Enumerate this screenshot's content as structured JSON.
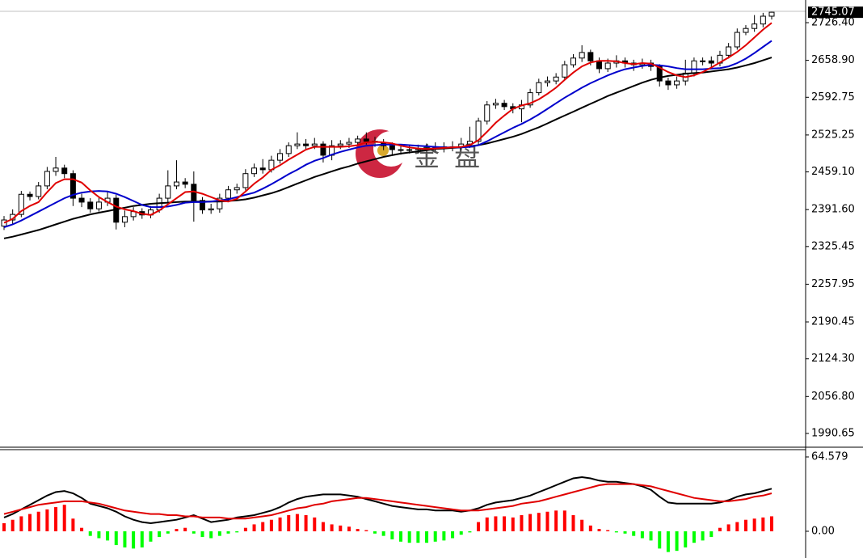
{
  "watermark": "金 盘",
  "chart_data": [
    {
      "type": "candlestick",
      "open": [
        2362,
        2373,
        2383,
        2419,
        2415,
        2434,
        2460,
        2466,
        2456,
        2412,
        2405,
        2393,
        2405,
        2412,
        2369,
        2379,
        2388,
        2382,
        2391,
        2412,
        2434,
        2441,
        2437,
        2408,
        2391,
        2393,
        2412,
        2427,
        2431,
        2456,
        2466,
        2463,
        2480,
        2492,
        2506,
        2509,
        2506,
        2509,
        2489,
        2506,
        2509,
        2512,
        2518,
        2514,
        2512,
        2506,
        2499,
        2498,
        2499,
        2501,
        2502,
        2504,
        2502,
        2504,
        2509,
        2514,
        2550,
        2579,
        2582,
        2576,
        2572,
        2579,
        2601,
        2619,
        2622,
        2629,
        2651,
        2663,
        2673,
        2658,
        2644,
        2654,
        2658,
        2654,
        2651,
        2654,
        2648,
        2622,
        2615,
        2622,
        2636,
        2658,
        2658,
        2654,
        2668,
        2683,
        2709,
        2716,
        2724,
        2738
      ],
      "high": [
        2380,
        2392,
        2425,
        2424,
        2441,
        2468,
        2486,
        2472,
        2462,
        2420,
        2412,
        2414,
        2424,
        2418,
        2390,
        2396,
        2394,
        2398,
        2420,
        2462,
        2480,
        2448,
        2460,
        2414,
        2402,
        2420,
        2434,
        2438,
        2464,
        2474,
        2482,
        2488,
        2500,
        2512,
        2530,
        2518,
        2520,
        2514,
        2516,
        2516,
        2520,
        2524,
        2530,
        2522,
        2518,
        2512,
        2506,
        2506,
        2508,
        2510,
        2512,
        2512,
        2514,
        2520,
        2540,
        2556,
        2586,
        2590,
        2588,
        2582,
        2588,
        2608,
        2626,
        2630,
        2636,
        2658,
        2670,
        2686,
        2678,
        2664,
        2662,
        2668,
        2664,
        2660,
        2662,
        2660,
        2652,
        2628,
        2630,
        2660,
        2664,
        2664,
        2666,
        2676,
        2690,
        2716,
        2722,
        2740,
        2744,
        2746
      ],
      "low": [
        2355,
        2366,
        2378,
        2408,
        2410,
        2428,
        2452,
        2448,
        2398,
        2396,
        2386,
        2388,
        2398,
        2356,
        2360,
        2372,
        2375,
        2376,
        2386,
        2405,
        2428,
        2430,
        2370,
        2384,
        2384,
        2386,
        2406,
        2420,
        2426,
        2450,
        2456,
        2458,
        2474,
        2486,
        2500,
        2498,
        2500,
        2476,
        2480,
        2500,
        2502,
        2506,
        2508,
        2504,
        2498,
        2490,
        2490,
        2492,
        2492,
        2494,
        2496,
        2494,
        2496,
        2498,
        2502,
        2508,
        2544,
        2572,
        2570,
        2564,
        2548,
        2574,
        2596,
        2612,
        2616,
        2624,
        2646,
        2656,
        2650,
        2636,
        2638,
        2646,
        2646,
        2640,
        2644,
        2640,
        2612,
        2606,
        2608,
        2614,
        2630,
        2650,
        2646,
        2648,
        2662,
        2678,
        2704,
        2710,
        2718,
        2732
      ],
      "close": [
        2373,
        2383,
        2419,
        2415,
        2434,
        2460,
        2466,
        2456,
        2412,
        2405,
        2393,
        2405,
        2412,
        2369,
        2379,
        2388,
        2382,
        2391,
        2412,
        2434,
        2441,
        2437,
        2408,
        2391,
        2393,
        2412,
        2427,
        2431,
        2456,
        2466,
        2463,
        2480,
        2492,
        2506,
        2509,
        2506,
        2509,
        2489,
        2506,
        2509,
        2512,
        2518,
        2514,
        2512,
        2506,
        2499,
        2498,
        2499,
        2501,
        2502,
        2504,
        2502,
        2504,
        2509,
        2514,
        2550,
        2579,
        2582,
        2576,
        2572,
        2579,
        2601,
        2619,
        2622,
        2629,
        2651,
        2663,
        2673,
        2658,
        2644,
        2654,
        2658,
        2654,
        2651,
        2654,
        2648,
        2622,
        2615,
        2622,
        2636,
        2658,
        2658,
        2654,
        2668,
        2683,
        2709,
        2716,
        2724,
        2738,
        2745.07
      ],
      "moving_averages": [
        {
          "color": "#000000",
          "values": [
            2340,
            2343,
            2347,
            2351,
            2355,
            2360,
            2365,
            2370,
            2375,
            2379,
            2383,
            2386,
            2389,
            2392,
            2395,
            2398,
            2400,
            2402,
            2403,
            2404,
            2405,
            2406,
            2406,
            2406,
            2406,
            2406,
            2407,
            2408,
            2410,
            2413,
            2417,
            2421,
            2426,
            2432,
            2438,
            2444,
            2450,
            2455,
            2460,
            2465,
            2469,
            2474,
            2478,
            2482,
            2486,
            2489,
            2492,
            2494,
            2496,
            2498,
            2500,
            2501,
            2502,
            2503,
            2505,
            2507,
            2510,
            2514,
            2518,
            2522,
            2527,
            2533,
            2539,
            2546,
            2553,
            2560,
            2567,
            2574,
            2581,
            2588,
            2595,
            2601,
            2607,
            2613,
            2619,
            2624,
            2628,
            2631,
            2633,
            2635,
            2636,
            2637,
            2639,
            2641,
            2643,
            2646,
            2650,
            2654,
            2659,
            2664
          ]
        },
        {
          "color": "#0000cc",
          "values": [
            2360,
            2365,
            2372,
            2380,
            2388,
            2396,
            2404,
            2412,
            2418,
            2422,
            2424,
            2425,
            2424,
            2420,
            2414,
            2407,
            2400,
            2396,
            2396,
            2397,
            2400,
            2404,
            2405,
            2405,
            2406,
            2408,
            2410,
            2414,
            2418,
            2422,
            2429,
            2437,
            2446,
            2455,
            2463,
            2472,
            2479,
            2484,
            2490,
            2495,
            2499,
            2503,
            2506,
            2507,
            2508,
            2508,
            2508,
            2507,
            2506,
            2505,
            2504,
            2503,
            2503,
            2503,
            2504,
            2507,
            2514,
            2522,
            2530,
            2538,
            2545,
            2553,
            2562,
            2572,
            2582,
            2592,
            2601,
            2610,
            2618,
            2625,
            2632,
            2638,
            2643,
            2646,
            2649,
            2651,
            2650,
            2648,
            2645,
            2643,
            2643,
            2643,
            2644,
            2645,
            2648,
            2654,
            2662,
            2672,
            2683,
            2694
          ]
        },
        {
          "color": "#e00000",
          "values": [
            2368,
            2375,
            2389,
            2398,
            2405,
            2423,
            2439,
            2446,
            2446,
            2440,
            2426,
            2414,
            2405,
            2397,
            2392,
            2389,
            2384,
            2382,
            2390,
            2401,
            2412,
            2423,
            2424,
            2420,
            2414,
            2408,
            2406,
            2411,
            2424,
            2438,
            2449,
            2463,
            2471,
            2481,
            2490,
            2499,
            2504,
            2504,
            2504,
            2504,
            2505,
            2507,
            2512,
            2513,
            2512,
            2510,
            2506,
            2503,
            2501,
            2500,
            2501,
            2502,
            2503,
            2504,
            2507,
            2516,
            2531,
            2547,
            2560,
            2572,
            2578,
            2582,
            2589,
            2599,
            2610,
            2624,
            2637,
            2648,
            2655,
            2658,
            2658,
            2657,
            2654,
            2652,
            2654,
            2653,
            2646,
            2638,
            2632,
            2629,
            2632,
            2638,
            2646,
            2655,
            2664,
            2674,
            2686,
            2700,
            2714,
            2726
          ]
        }
      ],
      "up_color": "#ffffff",
      "down_color": "#000000",
      "ylim": [
        1966,
        2747
      ],
      "yticks": [
        {
          "value": 2726.4,
          "label": "2726.40"
        },
        {
          "value": 2658.9,
          "label": "2658.90"
        },
        2592.75,
        2525.25,
        {
          "value": 2459.1,
          "label": "2459.10"
        },
        {
          "value": 2391.6,
          "label": "2391.60"
        },
        2325.45,
        2257.95,
        2190.45,
        {
          "value": 2124.3,
          "label": "2124.30"
        },
        {
          "value": 2056.8,
          "label": "2056.80"
        },
        1990.65
      ]
    },
    {
      "type": "macd",
      "histogram": {
        "positive_color": "#ff0000",
        "negative_color": "#00ff00",
        "values": [
          7,
          10,
          13,
          15,
          17,
          19,
          21,
          23,
          11,
          3,
          -4,
          -6,
          -8,
          -12,
          -14,
          -15,
          -14,
          -9,
          -5,
          -2,
          2,
          3,
          -2,
          -5,
          -6,
          -4,
          -2,
          -1,
          3,
          6,
          8,
          10,
          12,
          14,
          15,
          14,
          12,
          8,
          6,
          5,
          4,
          2,
          1,
          -2,
          -4,
          -7,
          -9,
          -10,
          -10,
          -10,
          -9,
          -8,
          -6,
          -3,
          -1,
          8,
          12,
          13,
          13,
          12,
          14,
          15,
          16,
          17,
          18,
          18,
          14,
          10,
          5,
          2,
          1,
          -1,
          -2,
          -4,
          -6,
          -8,
          -15,
          -18,
          -17,
          -14,
          -10,
          -8,
          -5,
          3,
          6,
          8,
          10,
          11,
          12,
          13
        ]
      },
      "lines": [
        {
          "color": "#000000",
          "values": [
            12,
            15,
            19,
            23,
            27,
            31,
            34,
            35,
            33,
            29,
            24,
            22,
            20,
            17,
            13,
            10,
            8,
            7,
            8,
            9,
            10,
            12,
            14,
            11,
            8,
            9,
            10,
            12,
            13,
            14,
            16,
            18,
            21,
            25,
            28,
            30,
            31,
            32,
            32,
            32,
            31,
            30,
            28,
            26,
            24,
            22,
            21,
            20,
            19,
            19,
            18,
            18,
            18,
            17,
            18,
            20,
            23,
            25,
            26,
            27,
            29,
            31,
            34,
            37,
            40,
            43,
            46,
            47,
            46,
            44,
            43,
            43,
            42,
            41,
            39,
            36,
            30,
            25,
            24,
            24,
            24,
            24,
            24,
            25,
            27,
            30,
            32,
            33,
            35,
            37
          ]
        },
        {
          "color": "#e00000",
          "values": [
            15,
            17,
            19,
            21,
            23,
            24,
            25,
            26,
            26,
            26,
            25,
            24,
            22,
            20,
            18,
            17,
            16,
            15,
            15,
            14,
            14,
            13,
            13,
            12,
            12,
            12,
            11,
            11,
            11,
            12,
            13,
            14,
            16,
            18,
            20,
            21,
            23,
            24,
            26,
            27,
            28,
            29,
            29,
            28,
            27,
            26,
            25,
            24,
            23,
            22,
            21,
            20,
            19,
            18,
            18,
            18,
            19,
            20,
            21,
            22,
            24,
            25,
            26,
            28,
            30,
            32,
            34,
            36,
            38,
            40,
            41,
            41,
            41,
            41,
            40,
            39,
            37,
            35,
            33,
            31,
            29,
            28,
            27,
            26,
            26,
            27,
            28,
            30,
            31,
            33
          ]
        }
      ],
      "ylim": [
        -23.2,
        70.2
      ],
      "yticks": [
        64.579,
        {
          "value": 0,
          "label": "0.00"
        }
      ]
    }
  ]
}
